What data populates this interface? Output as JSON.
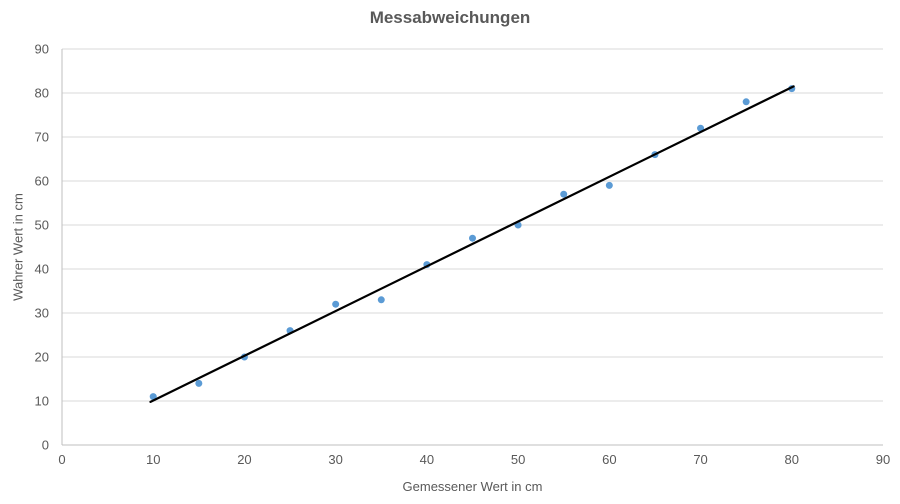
{
  "chart_data": {
    "type": "scatter",
    "title": "Messabweichungen",
    "xlabel": "Gemessener Wert in cm",
    "ylabel": "Wahrer Wert in cm",
    "xlim": [
      0,
      90
    ],
    "ylim": [
      0,
      90
    ],
    "xticks": [
      0,
      10,
      20,
      30,
      40,
      50,
      60,
      70,
      80,
      90
    ],
    "yticks": [
      0,
      10,
      20,
      30,
      40,
      50,
      60,
      70,
      80,
      90
    ],
    "grid": "horizontal",
    "legend": "none",
    "series": [
      {
        "name": "points",
        "type": "scatter",
        "marker": "circle",
        "color": "#5B9BD5",
        "x": [
          10,
          15,
          20,
          25,
          30,
          35,
          40,
          45,
          50,
          55,
          60,
          65,
          70,
          75,
          80
        ],
        "y": [
          11,
          14,
          20,
          26,
          32,
          33,
          41,
          47,
          50,
          57,
          59,
          66,
          72,
          78,
          81
        ]
      },
      {
        "name": "trendline",
        "type": "line",
        "color": "#000000",
        "x": [
          9.7,
          80.2
        ],
        "y": [
          9.8,
          81.5
        ]
      }
    ],
    "colors": {
      "marker": "#5B9BD5",
      "trendline": "#000000",
      "gridline": "#D9D9D9",
      "axis_line": "#BFBFBF",
      "text": "#595959",
      "background": "#FFFFFF"
    }
  }
}
